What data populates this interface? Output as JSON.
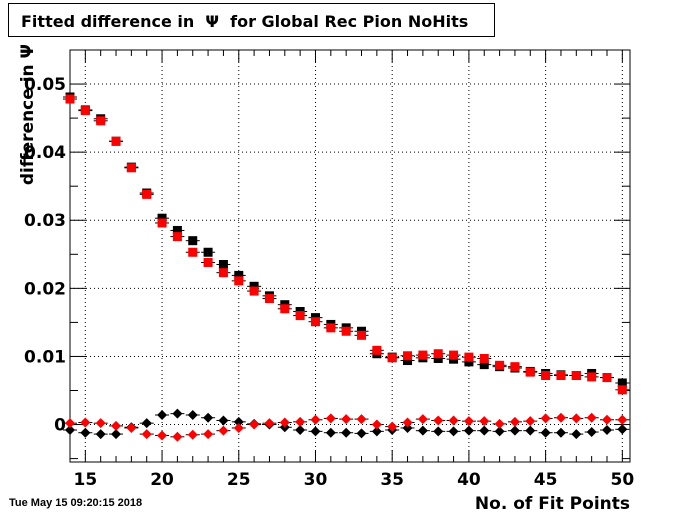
{
  "title": "Fitted difference in  Ψ  for Global Rec Pion NoHits",
  "timestamp": "Tue May 15 09:20:15 2018",
  "chart_data": {
    "type": "scatter",
    "title": "Fitted difference in  Ψ  for Global Rec Pion NoHits",
    "xlabel": "No. of Fit Points",
    "ylabel": "difference in Ψ",
    "xlim": [
      14,
      50.5
    ],
    "ylim": [
      -0.0055,
      0.055
    ],
    "xticks": [
      15,
      20,
      25,
      30,
      35,
      40,
      45,
      50
    ],
    "yticks": [
      0,
      0.01,
      0.02,
      0.03,
      0.04,
      0.05
    ],
    "ytick_labels": [
      "0",
      "0.01",
      "0.02",
      "0.03",
      "0.04",
      "0.05"
    ],
    "grid": true,
    "series": [
      {
        "marker": "square",
        "color": "#000000",
        "x": [
          14,
          15,
          16,
          17,
          18,
          19,
          20,
          21,
          22,
          23,
          24,
          25,
          26,
          27,
          28,
          29,
          30,
          31,
          32,
          33,
          34,
          35,
          36,
          37,
          38,
          39,
          40,
          41,
          42,
          43,
          44,
          45,
          46,
          47,
          48,
          49,
          50
        ],
        "y": [
          0.0481,
          0.0462,
          0.0449,
          0.0416,
          0.0378,
          0.034,
          0.0303,
          0.0285,
          0.027,
          0.0253,
          0.0235,
          0.0219,
          0.0203,
          0.0189,
          0.0176,
          0.0166,
          0.0157,
          0.0147,
          0.0142,
          0.0137,
          0.0104,
          0.0099,
          0.0094,
          0.0098,
          0.0097,
          0.0096,
          0.0092,
          0.0088,
          0.0085,
          0.0083,
          0.0078,
          0.0075,
          0.0073,
          0.0072,
          0.0075,
          0.0069,
          0.0061
        ]
      },
      {
        "marker": "square",
        "color": "#ff0000",
        "x": [
          14,
          15,
          16,
          17,
          18,
          19,
          20,
          21,
          22,
          23,
          24,
          25,
          26,
          27,
          28,
          29,
          30,
          31,
          32,
          33,
          34,
          35,
          36,
          37,
          38,
          39,
          40,
          41,
          42,
          43,
          44,
          45,
          46,
          47,
          48,
          49,
          50
        ],
        "y": [
          0.0478,
          0.0461,
          0.0446,
          0.0416,
          0.0377,
          0.0338,
          0.0296,
          0.0276,
          0.0253,
          0.0238,
          0.0223,
          0.0211,
          0.0196,
          0.0185,
          0.017,
          0.016,
          0.0151,
          0.0142,
          0.0137,
          0.0131,
          0.0109,
          0.0098,
          0.0101,
          0.0102,
          0.0104,
          0.0102,
          0.0099,
          0.0097,
          0.0087,
          0.0085,
          0.0077,
          0.0072,
          0.0072,
          0.0072,
          0.007,
          0.0069,
          0.0051
        ]
      },
      {
        "marker": "diamond",
        "color": "#000000",
        "x": [
          14,
          15,
          16,
          17,
          18,
          19,
          20,
          21,
          22,
          23,
          24,
          25,
          26,
          27,
          28,
          29,
          30,
          31,
          32,
          33,
          34,
          35,
          36,
          37,
          38,
          39,
          40,
          41,
          42,
          43,
          44,
          45,
          46,
          47,
          48,
          49,
          50
        ],
        "y": [
          -0.0008,
          -0.0012,
          -0.0014,
          -0.0014,
          -0.0004,
          0.0002,
          0.0014,
          0.0016,
          0.0014,
          0.001,
          0.0006,
          0.0004,
          0.0001,
          0.0,
          -0.0004,
          -0.0008,
          -0.001,
          -0.0012,
          -0.0012,
          -0.0013,
          -0.001,
          -0.0008,
          -0.0005,
          -0.0009,
          -0.001,
          -0.001,
          -0.0009,
          -0.0009,
          -0.001,
          -0.0009,
          -0.0009,
          -0.0012,
          -0.0012,
          -0.0014,
          -0.0011,
          -0.0008,
          -0.0007
        ]
      },
      {
        "marker": "diamond",
        "color": "#ff0000",
        "x": [
          14,
          15,
          16,
          17,
          18,
          19,
          20,
          21,
          22,
          23,
          24,
          25,
          26,
          27,
          28,
          29,
          30,
          31,
          32,
          33,
          34,
          35,
          36,
          37,
          38,
          39,
          40,
          41,
          42,
          43,
          44,
          45,
          46,
          47,
          48,
          49,
          50
        ],
        "y": [
          0.0002,
          0.0003,
          0.0002,
          -0.0002,
          -0.0005,
          -0.0014,
          -0.0016,
          -0.0018,
          -0.0015,
          -0.0014,
          -0.0009,
          -0.0005,
          0.0,
          0.0002,
          0.0003,
          0.0004,
          0.0007,
          0.0009,
          0.0008,
          0.0008,
          0.0,
          -0.0003,
          0.0003,
          0.0008,
          0.0006,
          0.0006,
          0.0005,
          0.0005,
          0.0001,
          0.0004,
          0.0005,
          0.0009,
          0.001,
          0.0009,
          0.001,
          0.0007,
          0.0007
        ]
      }
    ]
  }
}
